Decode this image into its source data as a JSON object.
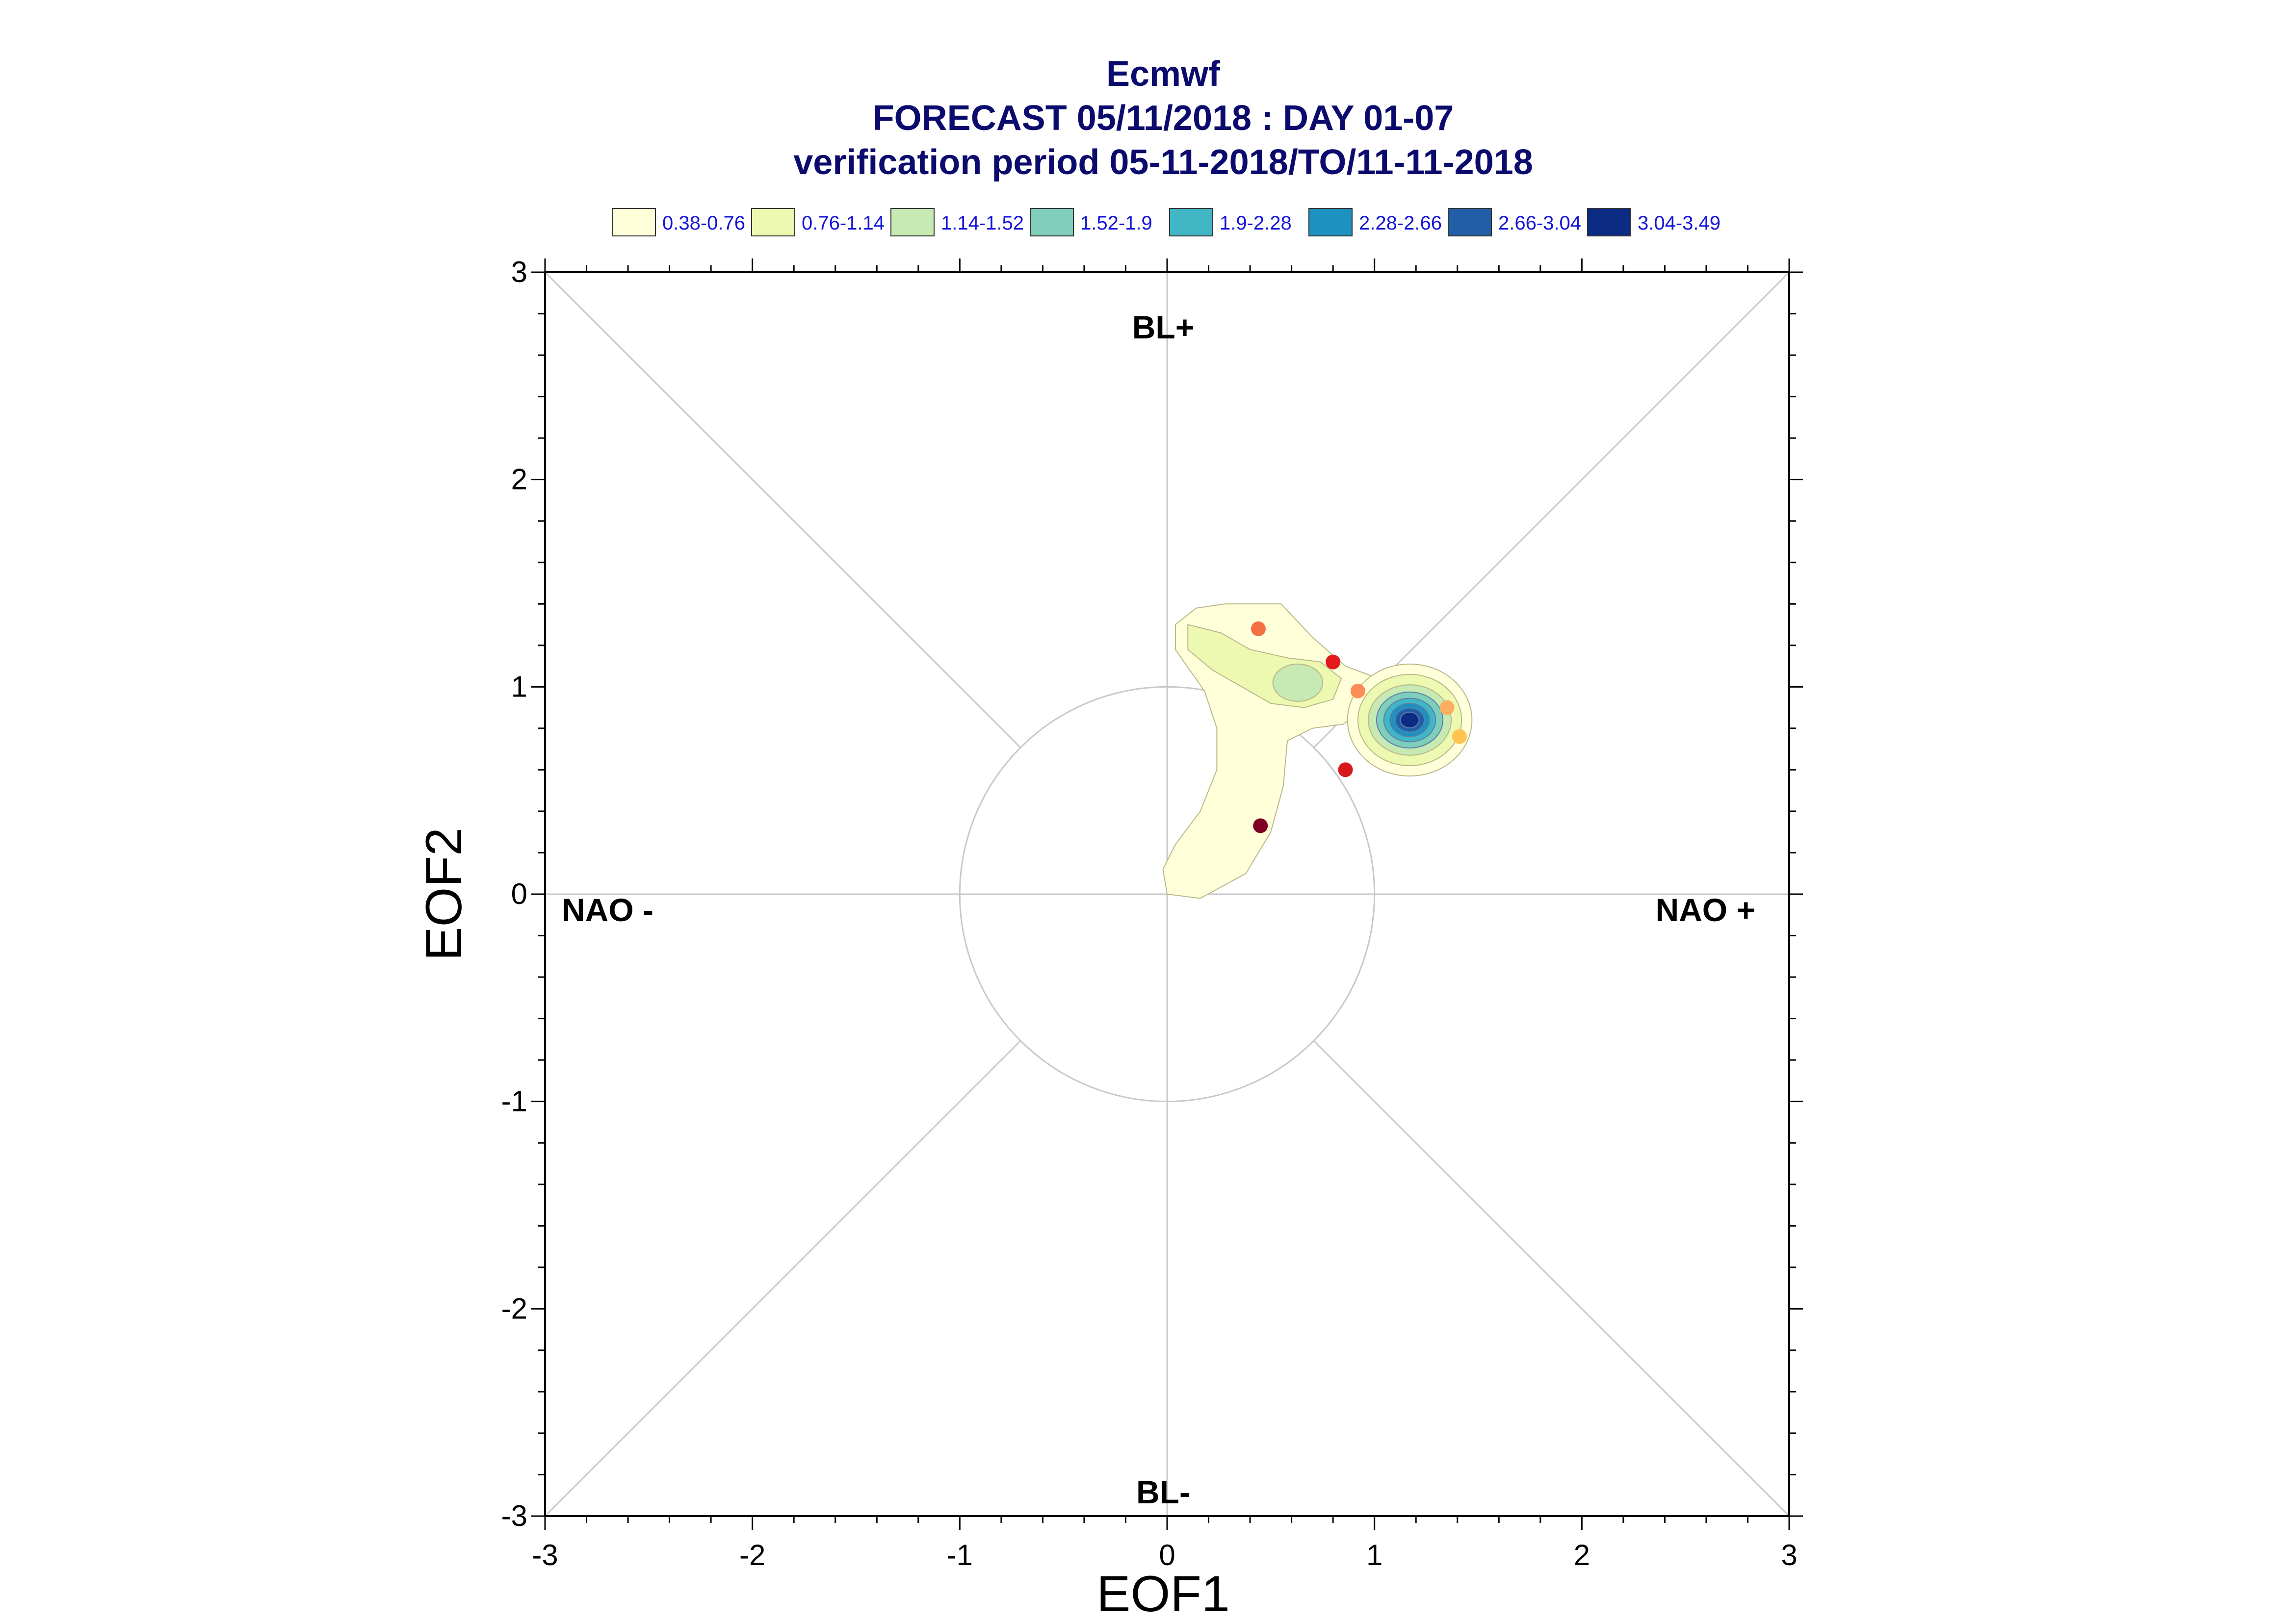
{
  "chart_data": {
    "type": "scatter",
    "title": "Ecmwf",
    "subtitle": "FORECAST 05/11/2018 : DAY 01-07",
    "subtitle2": "verification period 05-11-2018/TO/11-11-2018",
    "xlabel": "EOF1",
    "ylabel": "EOF2",
    "xlim": [
      -3,
      3
    ],
    "ylim": [
      -3,
      3
    ],
    "xticks": [
      "-3",
      "-2",
      "-1",
      "0",
      "1",
      "2",
      "3"
    ],
    "yticks": [
      "-3",
      "-2",
      "-1",
      "0",
      "1",
      "2",
      "3"
    ],
    "grid": false,
    "unit_circle_radius": 1,
    "regime_labels": {
      "top": "BL+",
      "bottom": "BL-",
      "left": "NAO -",
      "right": "NAO +"
    },
    "legend": {
      "placement": "top",
      "entries": [
        {
          "label": "0.38-0.76",
          "color": "#ffffd9"
        },
        {
          "label": "0.76-1.14",
          "color": "#edf8b1"
        },
        {
          "label": "1.14-1.52",
          "color": "#c7e9b4"
        },
        {
          "label": "1.52-1.9",
          "color": "#7fcdbb"
        },
        {
          "label": "1.9-2.28",
          "color": "#41b6c4"
        },
        {
          "label": "2.28-2.66",
          "color": "#1d91c0"
        },
        {
          "label": "2.66-3.04",
          "color": "#225ea8"
        },
        {
          "label": "3.04-3.49",
          "color": "#0c2c84"
        }
      ]
    },
    "points": [
      {
        "x": 0.44,
        "y": 1.28,
        "color": "#f46d43"
      },
      {
        "x": 0.8,
        "y": 1.12,
        "color": "#e31a1c"
      },
      {
        "x": 0.92,
        "y": 0.98,
        "color": "#fc8d59"
      },
      {
        "x": 1.35,
        "y": 0.9,
        "color": "#fdae61"
      },
      {
        "x": 1.41,
        "y": 0.76,
        "color": "#fec44f"
      },
      {
        "x": 0.86,
        "y": 0.6,
        "color": "#d7191c"
      },
      {
        "x": 0.45,
        "y": 0.33,
        "color": "#800026"
      }
    ],
    "density_peaks": [
      {
        "x": 1.17,
        "y": 0.84,
        "max_level": "3.04-3.49"
      },
      {
        "x": 0.63,
        "y": 1.02,
        "max_level": "1.14-1.52"
      }
    ]
  }
}
